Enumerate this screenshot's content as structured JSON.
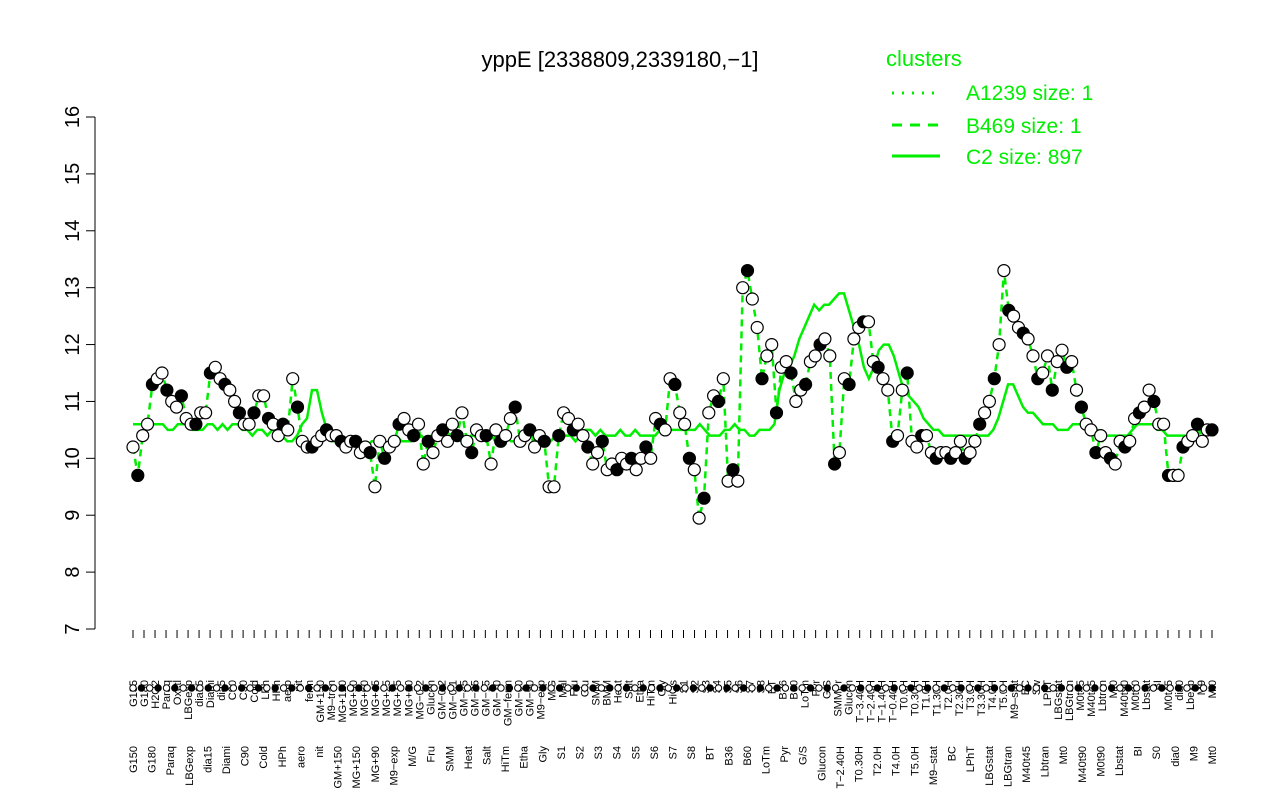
{
  "chart_data": {
    "type": "line",
    "title": "yppE [2338809,2339180,−1]",
    "xlabel": "",
    "ylabel": "",
    "ylim": [
      7,
      16
    ],
    "yticks": [
      7,
      8,
      9,
      10,
      11,
      12,
      13,
      14,
      15,
      16
    ],
    "grid": false,
    "x_tick_labels_top": [
      "G135",
      "G180",
      "H2O2",
      "Paraq",
      "Oxctl",
      "LBGexp",
      "dia15",
      "Diami",
      "dia5",
      "C90",
      "C30",
      "Cold",
      "LPh",
      "HPh",
      "aero",
      "nit",
      "ferm",
      "GM+150",
      "M9–tran",
      "MG+120",
      "MG+90",
      "MG+60",
      "MG+45",
      "MG+25",
      "MG+15",
      "MG+10",
      "MG−0.2",
      "Glucon",
      "GM−0.2",
      "GM−0.1",
      "GM−45",
      "GM−25",
      "GM−15",
      "GM−10",
      "GM−ferm",
      "GM−60",
      "GM−90",
      "M9−exp",
      "M/G",
      "Mal",
      "Fru",
      "Glu",
      "SMM",
      "BMM",
      "Heat",
      "Salt",
      "Etha",
      "HiTm",
      "Gly",
      "HiOs",
      "S1",
      "S2",
      "S3",
      "S4",
      "S5",
      "S6",
      "S7",
      "S8",
      "BT",
      "B36",
      "B60",
      "LoTm",
      "Pyr",
      "G/S",
      "SMMPr",
      "Glucon",
      "T−3.40H",
      "T−2.40H",
      "T−1.40H",
      "T−0.40H",
      "T0.0H",
      "T0.30H",
      "T1.0H",
      "T1.30H",
      "T2.0H",
      "T2.30H",
      "T3.0H",
      "T3.30H",
      "T4.0H",
      "T5.0H",
      "M9–stat",
      "BC",
      "Sw",
      "LPhT",
      "LBGstat",
      "LBGtran",
      "M0t45",
      "M40t45",
      "Lbtran",
      "Mt0",
      "M40t90",
      "M0t90",
      "Lbstat",
      "BI",
      "M0t45",
      "dia0",
      "Lbexp",
      "M9",
      "Mt0"
    ],
    "x_tick_labels_bottom": [
      "G150",
      "G180",
      "Paraq",
      "LBGexp",
      "dia15",
      "Diami",
      "C90",
      "Cold",
      "HPh",
      "aero",
      "nit",
      "GM+150",
      "MG+150",
      "MG+90",
      "M9−exp",
      "M/G",
      "Fru",
      "SMM",
      "Heat",
      "Salt",
      "HiTm",
      "Etha",
      "Gly",
      "S1",
      "S2",
      "S3",
      "S4",
      "S5",
      "S6",
      "S7",
      "S8",
      "BT",
      "B36",
      "B60",
      "LoTm",
      "Pyr",
      "G/S",
      "Glucon",
      "T−2.40H",
      "T0.30H",
      "T2.0H",
      "T4.0H",
      "T5.0H",
      "M9–stat",
      "BC",
      "LPhT",
      "LBGstat",
      "LBGtran",
      "M40t45",
      "Lbtran",
      "Mt0",
      "M40t90",
      "M0t90",
      "Lbstat",
      "BI",
      "S0",
      "dia0",
      "M9",
      "Mt0"
    ],
    "legend": {
      "title": "clusters",
      "placement": "top-right",
      "entries": [
        {
          "label": "A1239 size: 1",
          "style": "dotted"
        },
        {
          "label": "B469 size: 1",
          "style": "dashed"
        },
        {
          "label": "C2 size: 897",
          "style": "solid"
        }
      ]
    },
    "colors": {
      "series": "#00ee00",
      "point_stroke": "#000000",
      "text": "#000000"
    },
    "series": [
      {
        "style": "dashed-with-points",
        "values": [
          10.2,
          9.7,
          10.4,
          10.6,
          11.3,
          11.4,
          11.5,
          11.2,
          11.0,
          10.9,
          11.1,
          10.7,
          10.6,
          10.6,
          10.8,
          10.8,
          11.5,
          11.6,
          11.4,
          11.3,
          11.2,
          11.0,
          10.8,
          10.6,
          10.6,
          10.8,
          11.1,
          11.1,
          10.7,
          10.6,
          10.4,
          10.6,
          10.5,
          11.4,
          10.9,
          10.3,
          10.2,
          10.2,
          10.3,
          10.4,
          10.5,
          10.4,
          10.4,
          10.3,
          10.2,
          10.3,
          10.3,
          10.1,
          10.2,
          10.1,
          9.5,
          10.3,
          10.0,
          10.2,
          10.3,
          10.6,
          10.7,
          10.5,
          10.4,
          10.6,
          9.9,
          10.3,
          10.1,
          10.4,
          10.5,
          10.3,
          10.6,
          10.4,
          10.8,
          10.3,
          10.1,
          10.5,
          10.4,
          10.4,
          9.9,
          10.5,
          10.3,
          10.4,
          10.7,
          10.9,
          10.3,
          10.4,
          10.5,
          10.2,
          10.4,
          10.3,
          9.5,
          9.5,
          10.4,
          10.8,
          10.7,
          10.5,
          10.6,
          10.4,
          10.2,
          9.9,
          10.1,
          10.3,
          9.8,
          9.9,
          9.8,
          10.0,
          9.9,
          10.0,
          9.8,
          10.0,
          10.2,
          10.0,
          10.7,
          10.6,
          10.5,
          11.4,
          11.3,
          10.8,
          10.6,
          10.0,
          9.8,
          8.95,
          9.3,
          10.8,
          11.1,
          11.0,
          11.4,
          9.6,
          9.8,
          9.6,
          13.0,
          13.3,
          12.8,
          12.3,
          11.4,
          11.8,
          12.0,
          10.8,
          11.6,
          11.7,
          11.5,
          11.0,
          11.2,
          11.3,
          11.7,
          11.8,
          12.0,
          12.1,
          11.8,
          9.9,
          10.1,
          11.4,
          11.3,
          12.1,
          12.3,
          12.4,
          12.4,
          11.7,
          11.6,
          11.4,
          11.2,
          10.3,
          10.4,
          11.2,
          11.5,
          10.3,
          10.2,
          10.4,
          10.4,
          10.1,
          10.0,
          10.1,
          10.1,
          10.0,
          10.1,
          10.3,
          10.0,
          10.1,
          10.3,
          10.6,
          10.8,
          11.0,
          11.4,
          12.0,
          13.3,
          12.6,
          12.5,
          12.3,
          12.2,
          12.1,
          11.8,
          11.4,
          11.5,
          11.8,
          11.2,
          11.7,
          11.9,
          11.6,
          11.7,
          11.2,
          10.9,
          10.6,
          10.5,
          10.1,
          10.4,
          10.1,
          10.0,
          9.9,
          10.3,
          10.2,
          10.3,
          10.7,
          10.8,
          10.9,
          11.2,
          11.0,
          10.6,
          10.6,
          9.7,
          9.7,
          9.7,
          10.2,
          10.3,
          10.4,
          10.6,
          10.3,
          10.5,
          10.5
        ]
      },
      {
        "style": "solid",
        "values": [
          10.6,
          10.6,
          10.6,
          10.7,
          10.6,
          10.6,
          10.6,
          10.5,
          10.5,
          10.6,
          10.6,
          10.6,
          10.5,
          10.5,
          10.5,
          10.6,
          10.6,
          10.5,
          10.6,
          10.5,
          10.6,
          10.6,
          10.5,
          10.5,
          10.4,
          10.5,
          10.5,
          10.4,
          10.5,
          10.6,
          10.4,
          10.3,
          10.3,
          10.4,
          10.6,
          10.7,
          11.2,
          11.2,
          10.8,
          10.5,
          10.3,
          10.3,
          10.4,
          10.3,
          10.3,
          10.2,
          10.2,
          10.2,
          10.3,
          10.3,
          10.3,
          10.2,
          10.3,
          10.4,
          10.3,
          10.3,
          10.3,
          10.4,
          10.4,
          10.3,
          10.4,
          10.4,
          10.4,
          10.4,
          10.3,
          10.4,
          10.3,
          10.3,
          10.4,
          10.4,
          10.4,
          10.3,
          10.4,
          10.3,
          10.4,
          10.4,
          10.3,
          10.3,
          10.4,
          10.4,
          10.4,
          10.3,
          10.4,
          10.3,
          10.3,
          10.4,
          10.4,
          10.4,
          10.4,
          10.3,
          10.4,
          10.5,
          10.5,
          10.4,
          10.5,
          10.4,
          10.4,
          10.4,
          10.5,
          10.4,
          10.4,
          10.5,
          10.4,
          10.4,
          10.4,
          10.4,
          10.5,
          10.5,
          10.5,
          10.5,
          10.5,
          10.5,
          10.5,
          10.5,
          10.6,
          10.5,
          10.4,
          10.4,
          10.4,
          10.5,
          10.5,
          10.6,
          10.5,
          10.5,
          10.4,
          10.4,
          10.5,
          10.5,
          10.5,
          10.6,
          11.2,
          11.5,
          11.6,
          11.8,
          12.1,
          12.3,
          12.5,
          12.7,
          12.6,
          12.7,
          12.7,
          12.8,
          12.9,
          12.9,
          12.6,
          12.3,
          12.0,
          11.6,
          11.4,
          11.6,
          11.9,
          12.0,
          12.0,
          11.8,
          11.5,
          11.2,
          11.1,
          11.0,
          10.9,
          10.7,
          10.6,
          10.5,
          10.5,
          10.4,
          10.4,
          10.4,
          10.4,
          10.4,
          10.4,
          10.4,
          10.4,
          10.4,
          10.4,
          10.5,
          10.7,
          11.0,
          11.3,
          11.3,
          11.1,
          10.9,
          10.8,
          10.8,
          10.7,
          10.6,
          10.6,
          10.6,
          10.5,
          10.5,
          10.5,
          10.6,
          10.6,
          10.6,
          10.6,
          10.5,
          10.5,
          10.4,
          10.4,
          10.4,
          10.4,
          10.4,
          10.4,
          10.5,
          10.6,
          10.6,
          10.6,
          10.6,
          10.5,
          10.5,
          10.4,
          10.4,
          10.4,
          10.4,
          10.4,
          10.4,
          10.5,
          10.5,
          10.5,
          10.5
        ]
      }
    ]
  }
}
